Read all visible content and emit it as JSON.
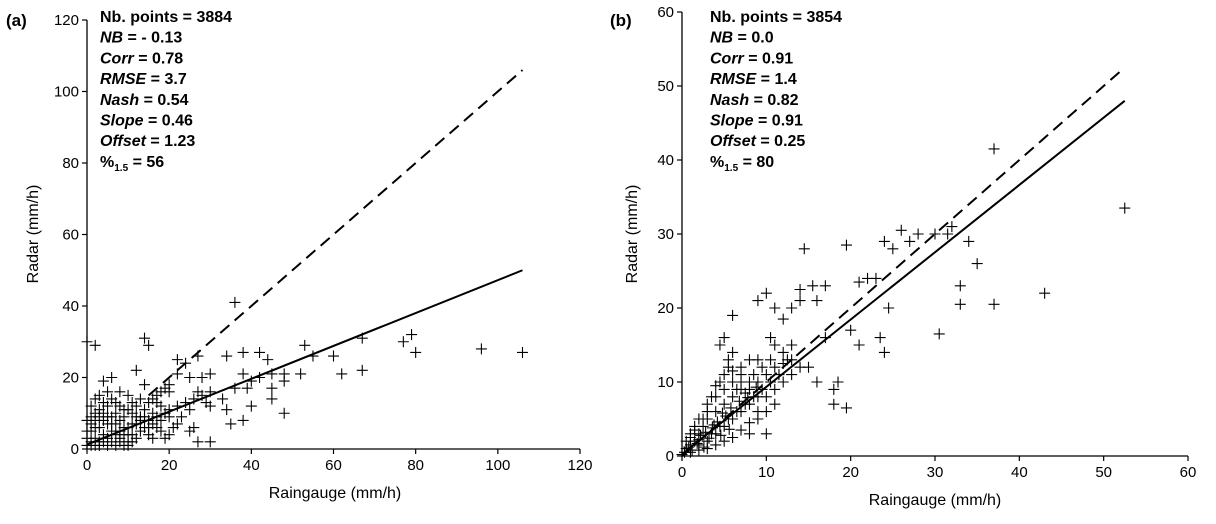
{
  "chart_data": [
    {
      "type": "scatter",
      "panel": "(a)",
      "xlabel": "Raingauge (mm/h)",
      "ylabel": "Radar (mm/h)",
      "xlim": [
        0,
        120
      ],
      "ylim": [
        0,
        120
      ],
      "xticks": [
        0,
        20,
        40,
        60,
        80,
        100,
        120
      ],
      "yticks": [
        0,
        20,
        40,
        60,
        80,
        100,
        120
      ],
      "stats": [
        {
          "key": "Nb. points",
          "italic": false,
          "value": "3884"
        },
        {
          "key": "NB",
          "italic": true,
          "value": "- 0.13"
        },
        {
          "key": "Corr",
          "italic": true,
          "value": "0.78"
        },
        {
          "key": "RMSE",
          "italic": true,
          "value": "3.7"
        },
        {
          "key": "Nash",
          "italic": true,
          "value": "0.54"
        },
        {
          "key": "Slope",
          "italic": true,
          "value": "0.46"
        },
        {
          "key": "Offset",
          "italic": true,
          "value": "1.23"
        },
        {
          "key": "%",
          "sub": "1.5",
          "italic": false,
          "value": "56"
        }
      ],
      "lines": [
        {
          "style": "dashed",
          "x": [
            15,
            106
          ],
          "y": [
            15,
            106
          ]
        },
        {
          "style": "solid",
          "x": [
            0,
            106
          ],
          "y": [
            1.23,
            50.0
          ]
        }
      ],
      "points": [
        [
          36,
          41
        ],
        [
          14,
          31
        ],
        [
          15,
          29
        ],
        [
          0,
          30
        ],
        [
          2,
          29
        ],
        [
          22,
          25
        ],
        [
          24,
          24
        ],
        [
          27,
          26
        ],
        [
          34,
          26
        ],
        [
          38,
          27
        ],
        [
          42,
          27
        ],
        [
          44,
          25
        ],
        [
          53,
          29
        ],
        [
          55,
          26
        ],
        [
          60,
          26
        ],
        [
          67,
          31
        ],
        [
          77,
          30
        ],
        [
          79,
          32
        ],
        [
          80,
          27
        ],
        [
          96,
          28
        ],
        [
          106,
          27
        ],
        [
          45,
          21
        ],
        [
          48,
          21
        ],
        [
          52,
          21
        ],
        [
          62,
          21
        ],
        [
          67,
          22
        ],
        [
          40,
          19
        ],
        [
          42,
          20
        ],
        [
          45,
          17
        ],
        [
          48,
          19
        ],
        [
          38,
          21
        ],
        [
          39,
          17
        ],
        [
          36,
          17
        ],
        [
          30,
          21
        ],
        [
          28,
          20
        ],
        [
          27,
          16
        ],
        [
          25,
          20
        ],
        [
          22,
          21
        ],
        [
          20,
          16
        ],
        [
          18,
          12
        ],
        [
          14,
          18
        ],
        [
          12,
          22
        ],
        [
          10,
          15
        ],
        [
          6,
          20
        ],
        [
          4,
          19
        ],
        [
          8,
          16
        ],
        [
          17,
          13
        ],
        [
          16,
          10
        ],
        [
          20,
          9
        ],
        [
          22,
          7
        ],
        [
          25,
          5
        ],
        [
          30,
          2
        ],
        [
          27,
          2
        ],
        [
          26,
          6
        ],
        [
          15,
          6
        ],
        [
          34,
          11
        ],
        [
          35,
          7
        ],
        [
          38,
          8
        ],
        [
          45,
          14
        ],
        [
          48,
          10
        ],
        [
          40,
          12
        ],
        [
          30,
          12
        ],
        [
          33,
          14
        ],
        [
          3,
          11
        ],
        [
          2,
          10
        ],
        [
          1,
          9
        ],
        [
          5,
          12
        ],
        [
          7,
          13
        ],
        [
          9,
          11
        ],
        [
          11,
          10
        ],
        [
          13,
          9
        ],
        [
          12,
          7
        ],
        [
          10,
          6
        ],
        [
          8,
          8
        ],
        [
          6,
          5
        ],
        [
          5,
          7
        ],
        [
          4,
          4
        ],
        [
          3,
          6
        ],
        [
          2,
          3
        ],
        [
          1,
          2
        ],
        [
          0,
          1
        ],
        [
          1,
          5
        ],
        [
          2,
          6
        ],
        [
          3,
          2
        ],
        [
          4,
          8
        ],
        [
          5,
          3
        ],
        [
          6,
          9
        ],
        [
          7,
          4
        ],
        [
          8,
          3
        ],
        [
          9,
          6
        ],
        [
          10,
          2
        ],
        [
          11,
          4
        ],
        [
          12,
          3
        ],
        [
          13,
          5
        ],
        [
          14,
          6
        ],
        [
          15,
          4
        ],
        [
          16,
          3
        ],
        [
          17,
          6
        ],
        [
          18,
          5
        ],
        [
          19,
          3
        ],
        [
          20,
          4
        ],
        [
          21,
          6
        ],
        [
          0,
          5
        ],
        [
          0,
          8
        ],
        [
          1,
          12
        ],
        [
          2,
          14
        ],
        [
          3,
          15
        ],
        [
          4,
          13
        ],
        [
          5,
          16
        ],
        [
          6,
          14
        ],
        [
          7,
          10
        ],
        [
          8,
          12
        ],
        [
          9,
          9
        ],
        [
          10,
          11
        ],
        [
          11,
          13
        ],
        [
          12,
          12
        ],
        [
          13,
          14
        ],
        [
          14,
          11
        ],
        [
          15,
          13
        ],
        [
          16,
          14
        ],
        [
          17,
          15
        ],
        [
          18,
          16
        ],
        [
          19,
          17
        ],
        [
          20,
          18
        ],
        [
          0,
          3
        ],
        [
          1,
          1
        ],
        [
          2,
          1
        ],
        [
          3,
          1
        ],
        [
          4,
          2
        ],
        [
          5,
          1
        ],
        [
          6,
          2
        ],
        [
          7,
          1
        ],
        [
          8,
          2
        ],
        [
          9,
          1
        ],
        [
          10,
          1
        ],
        [
          11,
          2
        ],
        [
          1,
          7
        ],
        [
          2,
          8
        ],
        [
          3,
          9
        ],
        [
          4,
          10
        ],
        [
          5,
          9
        ],
        [
          6,
          7
        ],
        [
          7,
          7
        ],
        [
          8,
          5
        ],
        [
          9,
          4
        ],
        [
          10,
          4
        ],
        [
          11,
          7
        ],
        [
          12,
          9
        ],
        [
          13,
          8
        ],
        [
          14,
          9
        ],
        [
          15,
          8
        ],
        [
          16,
          7
        ],
        [
          17,
          9
        ],
        [
          18,
          8
        ],
        [
          19,
          10
        ],
        [
          20,
          11
        ],
        [
          22,
          12
        ],
        [
          23,
          9
        ],
        [
          24,
          13
        ],
        [
          25,
          11
        ],
        [
          26,
          14
        ],
        [
          28,
          15
        ],
        [
          29,
          13
        ],
        [
          30,
          16
        ]
      ]
    },
    {
      "type": "scatter",
      "panel": "(b)",
      "xlabel": "Raingauge (mm/h)",
      "ylabel": "Radar (mm/h)",
      "xlim": [
        0,
        60
      ],
      "ylim": [
        0,
        60
      ],
      "xticks": [
        0,
        10,
        20,
        30,
        40,
        50,
        60
      ],
      "yticks": [
        0,
        10,
        20,
        30,
        40,
        50,
        60
      ],
      "stats": [
        {
          "key": "Nb. points",
          "italic": false,
          "value": "3854"
        },
        {
          "key": "NB",
          "italic": true,
          "value": "0.0"
        },
        {
          "key": "Corr",
          "italic": true,
          "value": "0.91"
        },
        {
          "key": "RMSE",
          "italic": true,
          "value": "1.4"
        },
        {
          "key": "Nash",
          "italic": true,
          "value": "0.82"
        },
        {
          "key": "Slope",
          "italic": true,
          "value": "0.91"
        },
        {
          "key": "Offset",
          "italic": true,
          "value": "0.25"
        },
        {
          "key": "%",
          "sub": "1.5",
          "italic": false,
          "value": "80"
        }
      ],
      "lines": [
        {
          "style": "dashed",
          "x": [
            0,
            52.5
          ],
          "y": [
            0,
            52.5
          ]
        },
        {
          "style": "solid",
          "x": [
            0,
            52.5
          ],
          "y": [
            0.25,
            48.0
          ]
        }
      ],
      "points": [
        [
          37,
          41.5
        ],
        [
          52.5,
          33.5
        ],
        [
          43,
          22
        ],
        [
          34,
          29
        ],
        [
          35,
          26
        ],
        [
          33,
          23
        ],
        [
          33,
          20.5
        ],
        [
          37,
          20.5
        ],
        [
          30.5,
          16.5
        ],
        [
          32,
          31
        ],
        [
          31.5,
          30
        ],
        [
          30,
          30
        ],
        [
          28,
          30
        ],
        [
          26,
          30.5
        ],
        [
          27,
          29
        ],
        [
          24,
          29
        ],
        [
          25,
          28
        ],
        [
          22,
          24
        ],
        [
          21,
          23.5
        ],
        [
          19.5,
          28.5
        ],
        [
          23,
          24
        ],
        [
          24.5,
          20
        ],
        [
          23.5,
          16
        ],
        [
          24,
          14
        ],
        [
          21,
          15
        ],
        [
          20,
          17
        ],
        [
          19.5,
          6.5
        ],
        [
          18,
          7
        ],
        [
          18,
          9
        ],
        [
          18.5,
          10
        ],
        [
          17,
          16
        ],
        [
          17,
          23
        ],
        [
          16,
          21
        ],
        [
          15.5,
          23
        ],
        [
          14,
          22.5
        ],
        [
          14,
          21
        ],
        [
          13,
          20
        ],
        [
          12,
          18.5
        ],
        [
          14.5,
          28
        ],
        [
          10,
          22
        ],
        [
          11,
          20
        ],
        [
          9,
          21
        ],
        [
          10.5,
          16
        ],
        [
          11,
          15
        ],
        [
          12,
          14
        ],
        [
          13,
          13
        ],
        [
          15,
          12
        ],
        [
          16,
          10
        ],
        [
          8,
          3
        ],
        [
          10,
          3
        ],
        [
          9,
          8
        ],
        [
          8,
          10
        ],
        [
          7,
          11
        ],
        [
          6,
          19
        ],
        [
          5,
          16
        ],
        [
          4.5,
          15
        ],
        [
          6,
          14
        ],
        [
          5.5,
          12
        ],
        [
          7,
          9
        ],
        [
          6,
          8
        ],
        [
          5,
          7
        ],
        [
          4,
          6
        ],
        [
          3,
          5
        ],
        [
          2.5,
          4
        ],
        [
          2,
          3
        ],
        [
          1.5,
          2
        ],
        [
          1,
          1.5
        ],
        [
          0.5,
          1
        ],
        [
          0.3,
          0.5
        ],
        [
          0,
          0.2
        ],
        [
          1,
          2.5
        ],
        [
          2,
          1.5
        ],
        [
          3,
          2
        ],
        [
          4,
          3
        ],
        [
          5,
          4
        ],
        [
          6,
          5
        ],
        [
          7,
          6
        ],
        [
          8,
          7
        ],
        [
          9,
          6
        ],
        [
          10,
          8
        ],
        [
          11,
          9
        ],
        [
          12,
          10
        ],
        [
          13,
          11
        ],
        [
          14,
          12
        ],
        [
          1.5,
          4
        ],
        [
          2,
          5
        ],
        [
          3,
          6
        ],
        [
          4,
          8
        ],
        [
          5,
          9
        ],
        [
          6,
          10
        ],
        [
          7,
          12
        ],
        [
          8,
          13
        ],
        [
          9,
          13
        ],
        [
          3.5,
          3
        ],
        [
          4.5,
          4
        ],
        [
          5.5,
          5
        ],
        [
          6.5,
          6
        ],
        [
          7.5,
          7
        ],
        [
          8.5,
          8
        ],
        [
          9.5,
          9
        ],
        [
          10.5,
          10
        ],
        [
          1,
          0.5
        ],
        [
          2,
          0.8
        ],
        [
          3,
          1
        ],
        [
          4,
          1.5
        ],
        [
          5,
          2
        ],
        [
          6,
          2.5
        ],
        [
          7,
          3.5
        ],
        [
          8,
          4.5
        ],
        [
          9,
          5
        ],
        [
          10,
          6
        ],
        [
          11,
          7
        ],
        [
          0.5,
          2
        ],
        [
          1,
          3
        ],
        [
          1.5,
          3.5
        ],
        [
          2.5,
          5
        ],
        [
          3,
          7
        ],
        [
          3.5,
          8
        ],
        [
          4,
          9.5
        ],
        [
          4.5,
          10
        ],
        [
          5,
          11
        ],
        [
          5.5,
          13
        ],
        [
          6,
          11.5
        ],
        [
          6.5,
          9
        ],
        [
          7,
          10
        ],
        [
          7.5,
          8.5
        ],
        [
          8,
          9
        ],
        [
          8.5,
          11
        ],
        [
          9,
          10
        ],
        [
          9.5,
          12
        ],
        [
          10,
          11
        ],
        [
          10.5,
          13
        ],
        [
          11,
          12
        ],
        [
          11.5,
          11
        ],
        [
          12,
          12.5
        ],
        [
          12.5,
          13
        ],
        [
          13,
          15
        ],
        [
          2,
          2.2
        ],
        [
          2.8,
          3.2
        ],
        [
          3.8,
          4.2
        ],
        [
          4.8,
          5.8
        ],
        [
          5.8,
          6.5
        ],
        [
          6.8,
          7.4
        ],
        [
          7.8,
          7.9
        ],
        [
          8.8,
          9.3
        ],
        [
          0.8,
          1.2
        ],
        [
          1.2,
          0.8
        ],
        [
          1.8,
          1.7
        ],
        [
          2.2,
          2.8
        ],
        [
          2.6,
          1.2
        ],
        [
          3.2,
          2.4
        ],
        [
          3.6,
          3.8
        ],
        [
          4.2,
          4.6
        ],
        [
          4.6,
          2.8
        ],
        [
          5.2,
          5.4
        ],
        [
          5.6,
          3.6
        ]
      ]
    }
  ]
}
